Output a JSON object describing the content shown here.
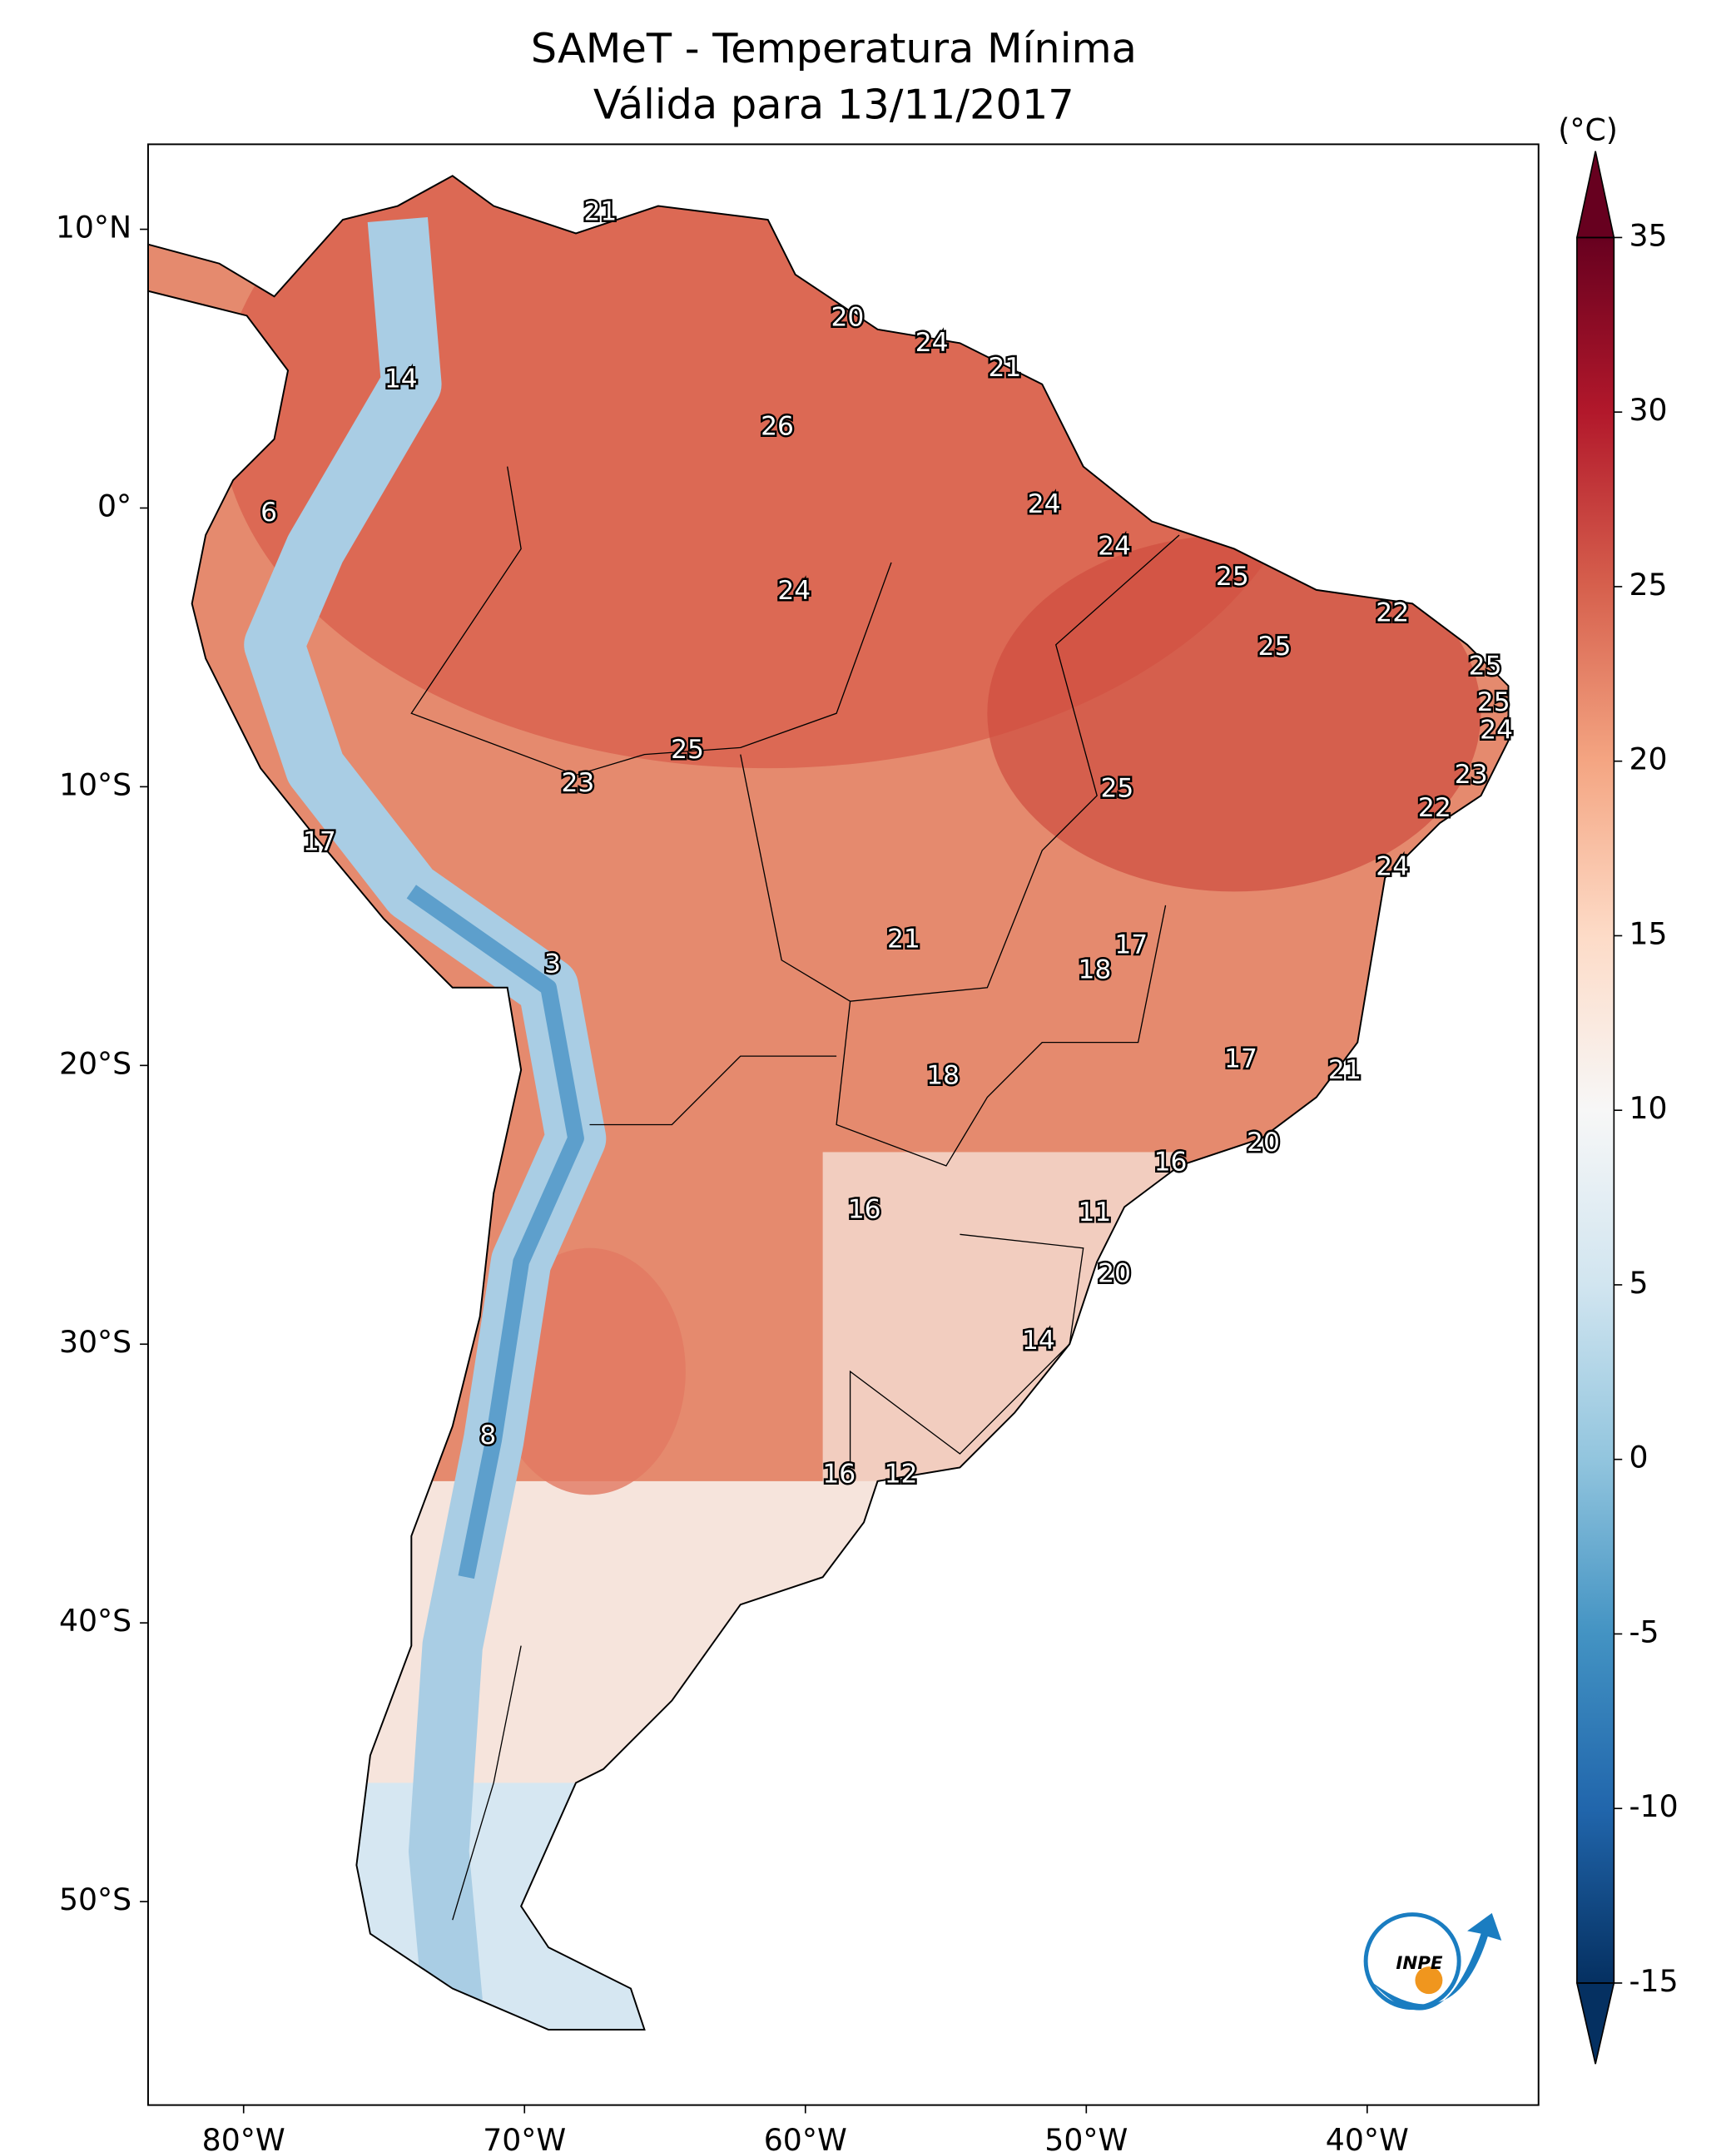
{
  "chart_data": {
    "type": "map",
    "title": "SAMeT - Temperatura Mínima",
    "subtitle": "Válida para 13/11/2017",
    "xlim": [
      -83.4,
      -33.9
    ],
    "ylim": [
      -57.3,
      13.05
    ],
    "xticks": [
      {
        "value": -80,
        "label": "80°W"
      },
      {
        "value": -70,
        "label": "70°W"
      },
      {
        "value": -60,
        "label": "60°W"
      },
      {
        "value": -50,
        "label": "50°W"
      },
      {
        "value": -40,
        "label": "40°W"
      }
    ],
    "yticks": [
      {
        "value": 10,
        "label": "10°N"
      },
      {
        "value": 0,
        "label": "0°"
      },
      {
        "value": -10,
        "label": "10°S"
      },
      {
        "value": -20,
        "label": "20°S"
      },
      {
        "value": -30,
        "label": "30°S"
      },
      {
        "value": -40,
        "label": "40°S"
      },
      {
        "value": -50,
        "label": "50°S"
      }
    ],
    "colorbar": {
      "label": "(°C)",
      "lim": [
        -15,
        35
      ],
      "ticks": [
        -15,
        -10,
        -5,
        0,
        5,
        10,
        15,
        20,
        25,
        30,
        35
      ],
      "colors": [
        "#053061",
        "#2166ac",
        "#4393c3",
        "#92c5de",
        "#d1e5f0",
        "#f7f7f7",
        "#fddbc7",
        "#f4a582",
        "#d6604d",
        "#b2182b",
        "#67001f"
      ]
    },
    "points": [
      {
        "lon": -67.3,
        "lat": 10.6,
        "value": 21
      },
      {
        "lon": -58.5,
        "lat": 6.8,
        "value": 20
      },
      {
        "lon": -55.5,
        "lat": 5.9,
        "value": 24
      },
      {
        "lon": -52.9,
        "lat": 5.0,
        "value": 21
      },
      {
        "lon": -74.4,
        "lat": 4.6,
        "value": 14
      },
      {
        "lon": -61.0,
        "lat": 2.9,
        "value": 26
      },
      {
        "lon": -79.1,
        "lat": -0.2,
        "value": 6
      },
      {
        "lon": -51.5,
        "lat": 0.1,
        "value": 24
      },
      {
        "lon": -49.0,
        "lat": -1.4,
        "value": 24
      },
      {
        "lon": -44.8,
        "lat": -2.5,
        "value": 25
      },
      {
        "lon": -60.4,
        "lat": -3.0,
        "value": 24
      },
      {
        "lon": -39.1,
        "lat": -3.8,
        "value": 22
      },
      {
        "lon": -43.3,
        "lat": -5.0,
        "value": 25
      },
      {
        "lon": -35.8,
        "lat": -5.7,
        "value": 25
      },
      {
        "lon": -35.5,
        "lat": -7.0,
        "value": 25
      },
      {
        "lon": -35.4,
        "lat": -8.0,
        "value": 24
      },
      {
        "lon": -64.2,
        "lat": -8.7,
        "value": 25
      },
      {
        "lon": -36.3,
        "lat": -9.6,
        "value": 23
      },
      {
        "lon": -68.1,
        "lat": -9.9,
        "value": 23
      },
      {
        "lon": -48.9,
        "lat": -10.1,
        "value": 25
      },
      {
        "lon": -37.6,
        "lat": -10.8,
        "value": 22
      },
      {
        "lon": -77.3,
        "lat": -12.0,
        "value": 17
      },
      {
        "lon": -39.1,
        "lat": -12.9,
        "value": 24
      },
      {
        "lon": -56.5,
        "lat": -15.5,
        "value": 21
      },
      {
        "lon": -48.4,
        "lat": -15.7,
        "value": 17
      },
      {
        "lon": -69.0,
        "lat": -16.4,
        "value": 3
      },
      {
        "lon": -49.7,
        "lat": -16.6,
        "value": 18
      },
      {
        "lon": -55.1,
        "lat": -20.4,
        "value": 18
      },
      {
        "lon": -44.5,
        "lat": -19.8,
        "value": 17
      },
      {
        "lon": -40.8,
        "lat": -20.2,
        "value": 21
      },
      {
        "lon": -43.7,
        "lat": -22.8,
        "value": 20
      },
      {
        "lon": -47.0,
        "lat": -23.5,
        "value": 16
      },
      {
        "lon": -57.9,
        "lat": -25.2,
        "value": 16
      },
      {
        "lon": -49.7,
        "lat": -25.3,
        "value": 11
      },
      {
        "lon": -49.0,
        "lat": -27.5,
        "value": 20
      },
      {
        "lon": -51.7,
        "lat": -29.9,
        "value": 14
      },
      {
        "lon": -71.3,
        "lat": -33.3,
        "value": 8
      },
      {
        "lon": -58.8,
        "lat": -34.7,
        "value": 16
      },
      {
        "lon": -56.6,
        "lat": -34.7,
        "value": 12
      }
    ],
    "logo_text": "INPE"
  }
}
